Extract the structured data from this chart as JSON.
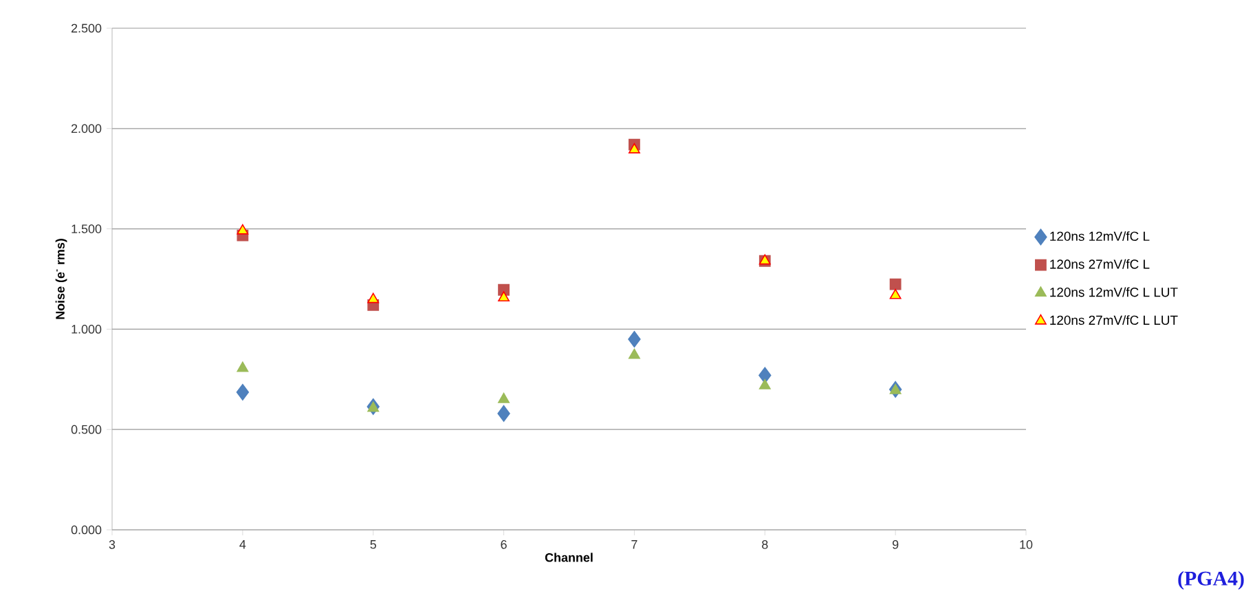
{
  "chart_data": {
    "type": "scatter",
    "xlabel": "Channel",
    "ylabel": "Noise (e$^{-}$ rms)",
    "annotations": [
      "(PGA4)"
    ],
    "xlim": [
      3,
      10
    ],
    "xticks": [
      3,
      4,
      5,
      6,
      7,
      8,
      9,
      10
    ],
    "ylim": [
      0,
      2.5
    ],
    "yticks": [
      {
        "value": 0,
        "label": "0.000"
      },
      {
        "value": 0.5,
        "label": "0.500"
      },
      {
        "value": 1,
        "label": "1.000"
      },
      {
        "value": 1.5,
        "label": "1.500"
      },
      {
        "value": 2,
        "label": "2.000"
      },
      {
        "value": 2.5,
        "label": "2.500"
      }
    ],
    "grid": "y",
    "legend": "right",
    "x": [
      4,
      5,
      6,
      7,
      8,
      9
    ],
    "series": [
      {
        "name": "120ns 12mV/fC L",
        "color": "#4f81bd",
        "marker": "diamond",
        "values": [
          0.686,
          0.614,
          0.58,
          0.95,
          0.77,
          0.7
        ]
      },
      {
        "name": "120ns 27mV/fC L",
        "color": "#c0504d",
        "marker": "square",
        "values": [
          1.467,
          1.12,
          1.196,
          1.92,
          1.34,
          1.224
        ]
      },
      {
        "name": "120ns 12mV/fC L LUT",
        "color": "#9bbb59",
        "marker": "triangle",
        "values": [
          0.805,
          0.606,
          0.65,
          0.87,
          0.718,
          0.694
        ]
      },
      {
        "name": "120ns 27mV/fC L LUT",
        "color": "#ffff00",
        "marker": "triangle",
        "values": [
          1.49,
          1.148,
          1.156,
          1.894,
          1.34,
          1.168
        ]
      }
    ]
  }
}
